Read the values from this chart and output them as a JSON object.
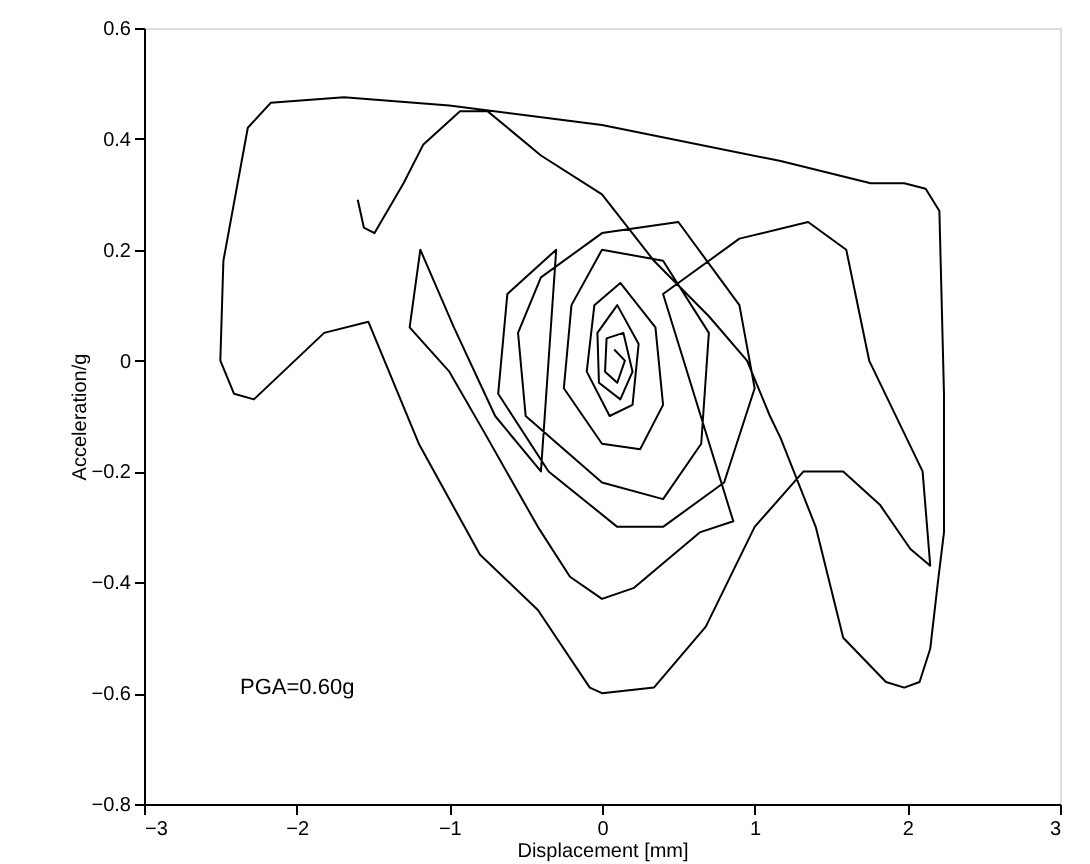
{
  "chart_data": {
    "type": "line",
    "xlabel": "Displacement [mm]",
    "ylabel": "Acceleration/g",
    "annotations": [
      "PGA=0.60g"
    ],
    "xlim": [
      -3,
      3
    ],
    "ylim": [
      -0.8,
      0.6
    ],
    "xticks": [
      -3,
      -2,
      -1,
      0,
      1,
      2,
      3
    ],
    "yticks": [
      -0.8,
      -0.6,
      -0.4,
      -0.2,
      0,
      0.2,
      0.4,
      0.6
    ],
    "grid": false,
    "marker": "none",
    "line_style": "solid",
    "series": [
      {
        "color": "#000000",
        "x": [
          -1.6,
          -1.56,
          -1.49,
          -1.3,
          -1.17,
          -0.93,
          -0.75,
          -0.4,
          0.0,
          0.34,
          0.7,
          0.95,
          1.1,
          1.17,
          1.4,
          1.58,
          1.86,
          1.98,
          2.08,
          2.15,
          2.2,
          2.24,
          2.24,
          2.21,
          2.12,
          1.98,
          1.76,
          1.17,
          0.0,
          -1.0,
          -1.69,
          -2.17,
          -2.32,
          -2.48,
          -2.5,
          -2.41,
          -2.28,
          -1.82,
          -1.53,
          -1.2,
          -0.8,
          -0.42,
          -0.08,
          0.0,
          0.34,
          0.68,
          1.0,
          1.32,
          1.58,
          1.82,
          2.02,
          2.15,
          2.1,
          1.75,
          1.6,
          1.35,
          0.9,
          0.4,
          0.86,
          0.64,
          0.21,
          0.0,
          -0.21,
          -0.42,
          -0.77,
          -1.0,
          -1.26,
          -1.19,
          -0.97,
          -0.7,
          -0.4,
          -0.3,
          -0.62,
          -0.68,
          -0.35,
          0.1,
          0.4,
          0.8,
          1.0,
          0.9,
          0.5,
          0.0,
          -0.4,
          -0.55,
          -0.5,
          0.0,
          0.4,
          0.65,
          0.7,
          0.4,
          0.0,
          -0.2,
          -0.25,
          0.0,
          0.25,
          0.4,
          0.35,
          0.12,
          -0.05,
          -0.1,
          0.05,
          0.2,
          0.24,
          0.1,
          -0.03,
          -0.02,
          0.12,
          0.2,
          0.14,
          0.03,
          0.02,
          0.1,
          0.15,
          0.08
        ],
        "values": [
          0.29,
          0.24,
          0.23,
          0.32,
          0.39,
          0.45,
          0.45,
          0.37,
          0.3,
          0.18,
          0.08,
          0.0,
          -0.1,
          -0.14,
          -0.3,
          -0.5,
          -0.58,
          -0.59,
          -0.58,
          -0.52,
          -0.4,
          -0.31,
          -0.06,
          0.27,
          0.31,
          0.32,
          0.32,
          0.36,
          0.425,
          0.46,
          0.475,
          0.465,
          0.42,
          0.18,
          0.0,
          -0.06,
          -0.07,
          0.05,
          0.07,
          -0.15,
          -0.35,
          -0.45,
          -0.59,
          -0.6,
          -0.59,
          -0.48,
          -0.3,
          -0.2,
          -0.2,
          -0.26,
          -0.34,
          -0.37,
          -0.2,
          0.0,
          0.2,
          0.25,
          0.22,
          0.12,
          -0.29,
          -0.31,
          -0.41,
          -0.43,
          -0.39,
          -0.3,
          -0.13,
          -0.02,
          0.06,
          0.2,
          0.06,
          -0.1,
          -0.2,
          0.2,
          0.12,
          -0.06,
          -0.2,
          -0.3,
          -0.3,
          -0.22,
          -0.05,
          0.1,
          0.25,
          0.23,
          0.15,
          0.05,
          -0.1,
          -0.22,
          -0.25,
          -0.15,
          0.05,
          0.18,
          0.2,
          0.1,
          -0.05,
          -0.15,
          -0.16,
          -0.08,
          0.06,
          0.14,
          0.1,
          -0.02,
          -0.1,
          -0.08,
          0.03,
          0.1,
          0.05,
          -0.04,
          -0.07,
          -0.02,
          0.05,
          0.04,
          -0.02,
          -0.04,
          0.0,
          0.02
        ]
      }
    ]
  }
}
